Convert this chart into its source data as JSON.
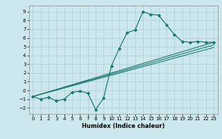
{
  "xlabel": "Humidex (Indice chaleur)",
  "bg_color": "#cce8ec",
  "grid_color": "#aacdd4",
  "line_color": "#1a7a6e",
  "xlim": [
    -0.5,
    23.5
  ],
  "ylim": [
    -2.7,
    9.7
  ],
  "xticks": [
    0,
    1,
    2,
    3,
    4,
    5,
    6,
    7,
    8,
    9,
    10,
    11,
    12,
    13,
    14,
    15,
    16,
    17,
    18,
    19,
    20,
    21,
    22,
    23
  ],
  "yticks": [
    -2,
    -1,
    0,
    1,
    2,
    3,
    4,
    5,
    6,
    7,
    8,
    9
  ],
  "main_x": [
    0,
    1,
    2,
    3,
    4,
    5,
    6,
    7,
    8,
    9,
    10,
    11,
    12,
    13,
    14,
    15,
    16,
    17,
    18,
    19,
    20,
    21,
    22,
    23
  ],
  "main_y": [
    -0.7,
    -1.0,
    -0.8,
    -1.2,
    -1.0,
    -0.2,
    -0.1,
    -0.3,
    -2.2,
    -0.9,
    2.8,
    4.8,
    6.6,
    6.9,
    9.0,
    8.7,
    8.6,
    7.5,
    6.4,
    5.6,
    5.5,
    5.6,
    5.5,
    5.5
  ],
  "line1_x": [
    0,
    23
  ],
  "line1_y": [
    -0.7,
    5.5
  ],
  "line2_x": [
    0,
    23
  ],
  "line2_y": [
    -0.7,
    4.9
  ],
  "line3_x": [
    0,
    23
  ],
  "line3_y": [
    -0.7,
    5.2
  ],
  "tick_fontsize": 5.0,
  "xlabel_fontsize": 6.0,
  "xlabel_fontweight": "bold"
}
